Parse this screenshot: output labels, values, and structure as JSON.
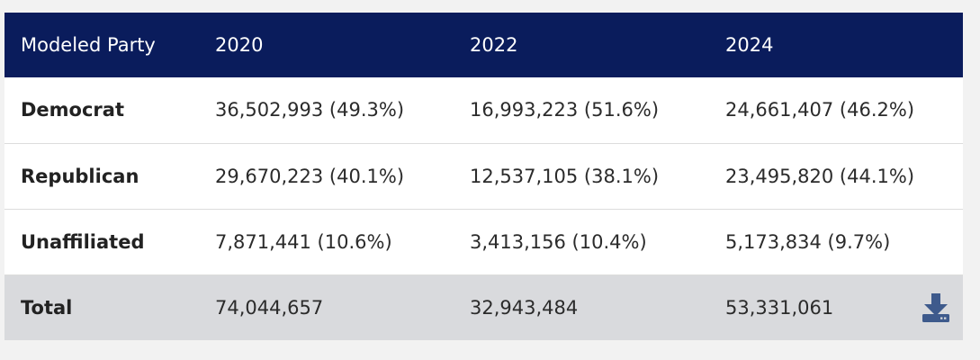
{
  "table": {
    "headers": [
      "Modeled Party",
      "2020",
      "2022",
      "2024"
    ],
    "rows": [
      {
        "party": "Democrat",
        "y2020": "36,502,993 (49.3%)",
        "y2022": "16,993,223 (51.6%)",
        "y2024": "24,661,407 (46.2%)"
      },
      {
        "party": "Republican",
        "y2020": "29,670,223 (40.1%)",
        "y2022": "12,537,105 (38.1%)",
        "y2024": "23,495,820 (44.1%)"
      },
      {
        "party": "Unaffiliated",
        "y2020": "7,871,441 (10.6%)",
        "y2022": "3,413,156 (10.4%)",
        "y2024": "5,173,834 (9.7%)"
      }
    ],
    "total": {
      "label": "Total",
      "y2020": "74,044,657",
      "y2022": "32,943,484",
      "y2024": "53,331,061"
    }
  },
  "colors": {
    "header_bg": "#0a1c5c",
    "total_bg": "#d9dadd",
    "download_icon": "#3e5a8c"
  },
  "icons": {
    "download": "download-icon"
  }
}
